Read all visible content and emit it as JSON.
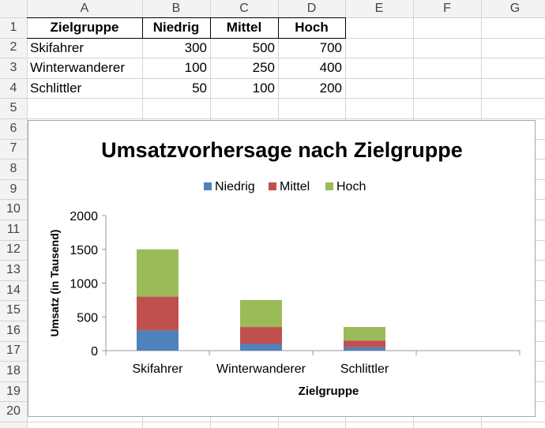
{
  "sheet": {
    "columns": [
      "A",
      "B",
      "C",
      "D",
      "E",
      "F",
      "G"
    ],
    "rows": [
      "1",
      "2",
      "3",
      "4",
      "5",
      "6",
      "7",
      "8",
      "9",
      "10",
      "11",
      "12",
      "13",
      "14",
      "15",
      "16",
      "17",
      "18",
      "19",
      "20"
    ],
    "table": {
      "headers": [
        "Zielgruppe",
        "Niedrig",
        "Mittel",
        "Hoch"
      ],
      "rows": [
        [
          "Skifahrer",
          "300",
          "500",
          "700"
        ],
        [
          "Winterwanderer",
          "100",
          "250",
          "400"
        ],
        [
          "Schlittler",
          "50",
          "100",
          "200"
        ]
      ]
    }
  },
  "chart_data": {
    "type": "bar",
    "stacked": true,
    "title": "Umsatzvorhersage nach Zielgruppe",
    "xlabel": "Zielgruppe",
    "ylabel": "Umsatz (in Tausend)",
    "categories": [
      "Skifahrer",
      "Winterwanderer",
      "Schlittler",
      ""
    ],
    "series": [
      {
        "name": "Niedrig",
        "color": "#4f81bd",
        "values": [
          300,
          100,
          50,
          0
        ]
      },
      {
        "name": "Mittel",
        "color": "#c0504d",
        "values": [
          500,
          250,
          100,
          0
        ]
      },
      {
        "name": "Hoch",
        "color": "#9bbb59",
        "values": [
          700,
          400,
          200,
          0
        ]
      }
    ],
    "yticks": [
      "0",
      "500",
      "1000",
      "1500",
      "2000"
    ],
    "ylim": [
      0,
      2000
    ],
    "grid": false,
    "legend_position": "top"
  }
}
